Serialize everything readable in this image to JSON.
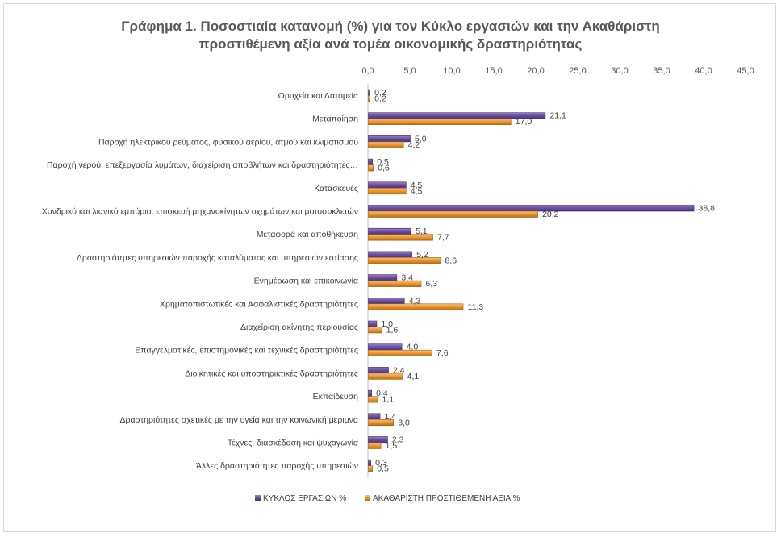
{
  "chart_data": {
    "type": "bar",
    "orientation": "horizontal",
    "title": [
      "Γράφημα 1. Ποσοστιαία κατανομή (%) για τον Κύκλο εργασιών και την Ακαθάριστη",
      "προστιθέμενη αξία ανά τομέα οικονομικής δραστηριότητας"
    ],
    "categories": [
      "Ορυχεία και Λατομεία",
      "Μεταποίηση",
      "Παροχή ηλεκτρικού ρεύματος, φυσικού αερίου, ατμού και κλιματισμού",
      "Παροχή νερού, επεξεργασία λυμάτων, διαχείριση αποβλήτων και δραστηριότητες…",
      "Κατασκευές",
      "Χονδρικό και λιανικό εμπόριο, επισκευή μηχανοκίνητων οχημάτων και μοτοσυκλετών",
      "Μεταφορά και αποθήκευση",
      "Δραστηριότητες υπηρεσιών παροχής καταλύματος και υπηρεσιών εστίασης",
      "Ενημέρωση και επικοινωνία",
      "Χρηματοπιστωτικές και Ασφαλιστικές δραστηριότητες",
      "Διαχείριση ακίνητης περιουσίας",
      "Επαγγελματικές, επιστημονικές και τεχνικές δραστηριότητες",
      "Διοικητικές και υποστηρικτικές δραστηριότητες",
      "Εκπαίδευση",
      "Δραστηριότητες σχετικές με την υγεία και την κοινωνική μέριμνα",
      "Τέχνες, διασκέδαση και ψυχαγωγία",
      "Άλλες δραστηριότητες παροχής υπηρεσιών"
    ],
    "series": [
      {
        "name": "ΚΥΚΛΟΣ ΕΡΓΑΣΙΩΝ %",
        "color": "#6a4c9c",
        "values": [
          0.2,
          21.1,
          5.0,
          0.5,
          4.5,
          38.8,
          5.1,
          5.2,
          3.4,
          4.3,
          1.0,
          4.0,
          2.4,
          0.4,
          1.4,
          2.3,
          0.3
        ]
      },
      {
        "name": "ΑΚΑΘΑΡΙΣΤΗ ΠΡΟΣΤΙΘΕΜΕΝΗ ΑΞΙΑ %",
        "color": "#e6962e",
        "values": [
          0.2,
          17.0,
          4.2,
          0.6,
          4.5,
          20.2,
          7.7,
          8.6,
          6.3,
          11.3,
          1.6,
          7.6,
          4.1,
          1.1,
          3.0,
          1.5,
          0.5
        ]
      }
    ],
    "xlim": [
      0,
      45
    ],
    "xticks": [
      0,
      5,
      10,
      15,
      20,
      25,
      30,
      35,
      40,
      45
    ],
    "xtick_labels": [
      "0,0",
      "5,0",
      "10,0",
      "15,0",
      "20,0",
      "25,0",
      "30,0",
      "35,0",
      "40,0",
      "45,0"
    ],
    "xaxis_position": "top",
    "grid": false,
    "legend": "bottom"
  }
}
